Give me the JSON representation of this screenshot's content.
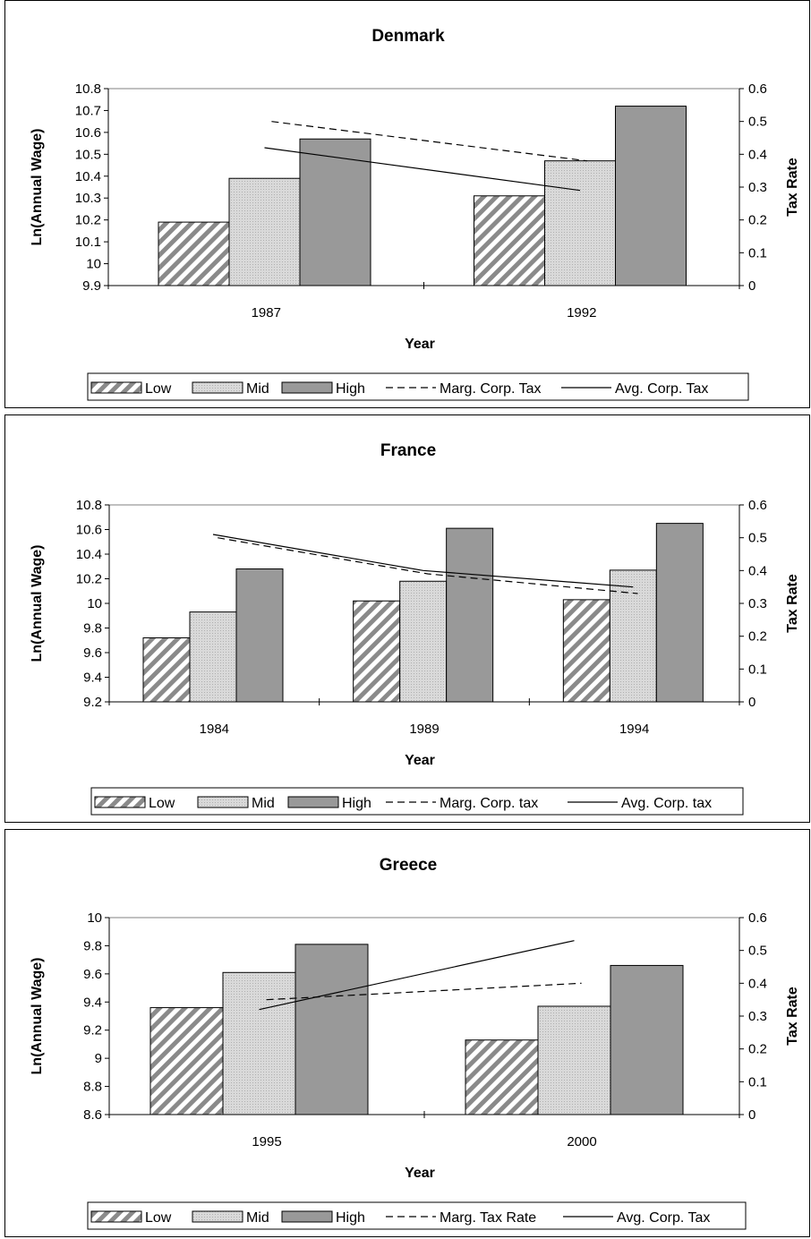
{
  "colors": {
    "low_hatch": "#8a8a8a",
    "mid_fill": "#d9d9d9",
    "high_fill": "#999999",
    "line": "#000000"
  },
  "chart_data": [
    {
      "type": "bar",
      "title": "Denmark",
      "xlabel": "Year",
      "ylabel": "Ln(Annual Wage)",
      "y2label": "Tax Rate",
      "categories": [
        "1987",
        "1992"
      ],
      "ylim": [
        9.9,
        10.8
      ],
      "yticks": [
        "10.8",
        "10.7",
        "10.6",
        "10.5",
        "10.4",
        "10.3",
        "10.2",
        "10.1",
        "10",
        "9.9"
      ],
      "y2lim": [
        0,
        0.6
      ],
      "y2ticks": [
        "0.6",
        "0.5",
        "0.4",
        "0.3",
        "0.2",
        "0.1",
        "0"
      ],
      "series": [
        {
          "name": "Low",
          "values": [
            10.19,
            10.31
          ]
        },
        {
          "name": "Mid",
          "values": [
            10.39,
            10.47
          ]
        },
        {
          "name": "High",
          "values": [
            10.57,
            10.72
          ]
        }
      ],
      "lines": [
        {
          "name": "Marg. Corp. Tax",
          "style": "dashed",
          "values": [
            0.5,
            0.38
          ]
        },
        {
          "name": "Avg. Corp. Tax",
          "style": "solid",
          "values": [
            0.42,
            0.29
          ]
        }
      ],
      "legend": [
        "Low",
        "Mid",
        "High",
        "Marg. Corp. Tax",
        "Avg. Corp. Tax"
      ],
      "legend_position": "bottom"
    },
    {
      "type": "bar",
      "title": "France",
      "xlabel": "Year",
      "ylabel": "Ln(Annual Wage)",
      "y2label": "Tax Rate",
      "categories": [
        "1984",
        "1989",
        "1994"
      ],
      "ylim": [
        9.2,
        10.8
      ],
      "yticks": [
        "10.8",
        "10.6",
        "10.4",
        "10.2",
        "10",
        "9.8",
        "9.6",
        "9.4",
        "9.2"
      ],
      "y2lim": [
        0,
        0.6
      ],
      "y2ticks": [
        "0.6",
        "0.5",
        "0.4",
        "0.3",
        "0.2",
        "0.1",
        "0"
      ],
      "series": [
        {
          "name": "Low",
          "values": [
            9.72,
            10.02,
            10.03
          ]
        },
        {
          "name": "Mid",
          "values": [
            9.93,
            10.18,
            10.27
          ]
        },
        {
          "name": "High",
          "values": [
            10.28,
            10.61,
            10.65
          ]
        }
      ],
      "lines": [
        {
          "name": "Marg. Corp. tax",
          "style": "dashed",
          "values": [
            0.5,
            0.39,
            0.33
          ]
        },
        {
          "name": "Avg. Corp. tax",
          "style": "solid",
          "values": [
            0.51,
            0.4,
            0.35
          ]
        }
      ],
      "legend": [
        "Low",
        "Mid",
        "High",
        "Marg. Corp. tax",
        "Avg. Corp. tax"
      ],
      "legend_position": "bottom"
    },
    {
      "type": "bar",
      "title": "Greece",
      "xlabel": "Year",
      "ylabel": "Ln(Annual Wage)",
      "y2label": "Tax Rate",
      "categories": [
        "1995",
        "2000"
      ],
      "ylim": [
        8.6,
        10
      ],
      "yticks": [
        "10",
        "9.8",
        "9.6",
        "9.4",
        "9.2",
        "9",
        "8.8",
        "8.6"
      ],
      "y2lim": [
        0,
        0.6
      ],
      "y2ticks": [
        "0.6",
        "0.5",
        "0.4",
        "0.3",
        "0.2",
        "0.1",
        "0"
      ],
      "series": [
        {
          "name": "Low",
          "values": [
            9.36,
            9.13
          ]
        },
        {
          "name": "Mid",
          "values": [
            9.61,
            9.37
          ]
        },
        {
          "name": "High",
          "values": [
            9.81,
            9.66
          ]
        }
      ],
      "lines": [
        {
          "name": "Marg. Tax Rate",
          "style": "dashed",
          "values": [
            0.35,
            0.4
          ]
        },
        {
          "name": "Avg. Corp. Tax",
          "style": "solid",
          "values": [
            0.32,
            0.53
          ]
        }
      ],
      "legend": [
        "Low",
        "Mid",
        "High",
        "Marg. Tax Rate",
        "Avg. Corp. Tax"
      ],
      "legend_position": "bottom"
    }
  ]
}
